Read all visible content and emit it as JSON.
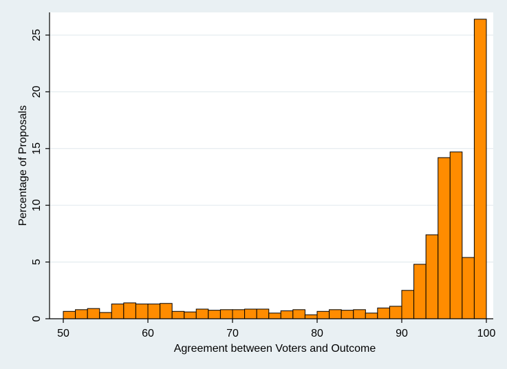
{
  "chart_data": {
    "type": "bar",
    "xlabel": "Agreement between Voters and Outcome",
    "ylabel": "Percentage of Proposals",
    "xlim": [
      50,
      100
    ],
    "ylim": [
      0,
      27
    ],
    "xticks": [
      "50",
      "60",
      "70",
      "80",
      "90",
      "100"
    ],
    "yticks": [
      "0",
      "5",
      "10",
      "15",
      "20",
      "25"
    ],
    "grid": true,
    "bar_color": "#ff8c00",
    "bar_edge_color": "#000000",
    "background_color": "#e9f0f3",
    "plot_background_color": "#ffffff",
    "bins": [
      {
        "x": 50.0,
        "width": 1.43,
        "value": 0.65
      },
      {
        "x": 51.43,
        "width": 1.43,
        "value": 0.8
      },
      {
        "x": 52.86,
        "width": 1.43,
        "value": 0.9
      },
      {
        "x": 54.29,
        "width": 1.43,
        "value": 0.55
      },
      {
        "x": 55.71,
        "width": 1.43,
        "value": 1.3
      },
      {
        "x": 57.14,
        "width": 1.43,
        "value": 1.4
      },
      {
        "x": 58.57,
        "width": 1.43,
        "value": 1.3
      },
      {
        "x": 60.0,
        "width": 1.43,
        "value": 1.3
      },
      {
        "x": 61.43,
        "width": 1.43,
        "value": 1.35
      },
      {
        "x": 62.86,
        "width": 1.43,
        "value": 0.65
      },
      {
        "x": 64.29,
        "width": 1.43,
        "value": 0.6
      },
      {
        "x": 65.71,
        "width": 1.43,
        "value": 0.85
      },
      {
        "x": 67.14,
        "width": 1.43,
        "value": 0.75
      },
      {
        "x": 68.57,
        "width": 1.43,
        "value": 0.8
      },
      {
        "x": 70.0,
        "width": 1.43,
        "value": 0.8
      },
      {
        "x": 71.43,
        "width": 1.43,
        "value": 0.85
      },
      {
        "x": 72.86,
        "width": 1.43,
        "value": 0.85
      },
      {
        "x": 74.29,
        "width": 1.43,
        "value": 0.5
      },
      {
        "x": 75.71,
        "width": 1.43,
        "value": 0.7
      },
      {
        "x": 77.14,
        "width": 1.43,
        "value": 0.8
      },
      {
        "x": 78.57,
        "width": 1.43,
        "value": 0.35
      },
      {
        "x": 80.0,
        "width": 1.43,
        "value": 0.65
      },
      {
        "x": 81.43,
        "width": 1.43,
        "value": 0.8
      },
      {
        "x": 82.86,
        "width": 1.43,
        "value": 0.75
      },
      {
        "x": 84.29,
        "width": 1.43,
        "value": 0.8
      },
      {
        "x": 85.71,
        "width": 1.43,
        "value": 0.5
      },
      {
        "x": 87.14,
        "width": 1.43,
        "value": 0.95
      },
      {
        "x": 88.57,
        "width": 1.43,
        "value": 1.1
      },
      {
        "x": 90.0,
        "width": 1.43,
        "value": 2.5
      },
      {
        "x": 91.43,
        "width": 1.43,
        "value": 4.8
      },
      {
        "x": 92.86,
        "width": 1.43,
        "value": 7.4
      },
      {
        "x": 94.29,
        "width": 1.43,
        "value": 14.2
      },
      {
        "x": 95.71,
        "width": 1.43,
        "value": 14.7
      },
      {
        "x": 97.14,
        "width": 1.43,
        "value": 5.4
      },
      {
        "x": 98.57,
        "width": 1.43,
        "value": 26.4
      }
    ]
  }
}
